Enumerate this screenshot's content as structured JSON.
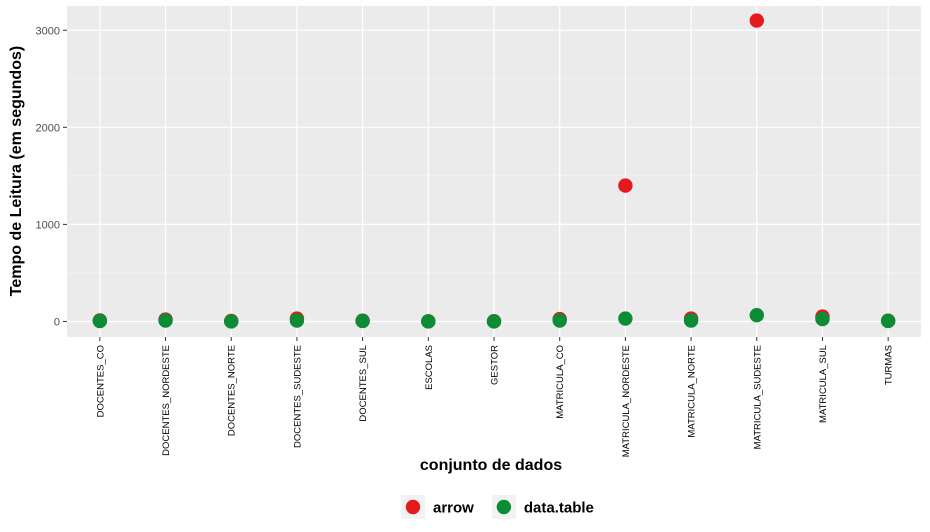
{
  "chart_data": {
    "type": "scatter",
    "xlabel": "conjunto de dados",
    "ylabel": "Tempo de Leitura (em segundos)",
    "categories": [
      "DOCENTES_CO",
      "DOCENTES_NORDESTE",
      "DOCENTES_NORTE",
      "DOCENTES_SUDESTE",
      "DOCENTES_SUL",
      "ESCOLAS",
      "GESTOR",
      "MATRICULA_CO",
      "MATRICULA_NORDESTE",
      "MATRICULA_NORTE",
      "MATRICULA_SUDESTE",
      "MATRICULA_SUL",
      "TURMAS"
    ],
    "y_ticks": [
      0,
      1000,
      2000,
      3000
    ],
    "ylim": [
      -160,
      3250
    ],
    "grid": true,
    "legend_position": "bottom",
    "series": [
      {
        "name": "arrow",
        "color": "#e41a1c",
        "values": [
          10,
          20,
          5,
          30,
          8,
          2,
          3,
          25,
          1400,
          30,
          3100,
          50,
          8
        ]
      },
      {
        "name": "data.table",
        "color": "#0b8c35",
        "values": [
          5,
          10,
          0,
          10,
          5,
          0,
          0,
          10,
          30,
          10,
          65,
          25,
          5
        ]
      }
    ]
  }
}
